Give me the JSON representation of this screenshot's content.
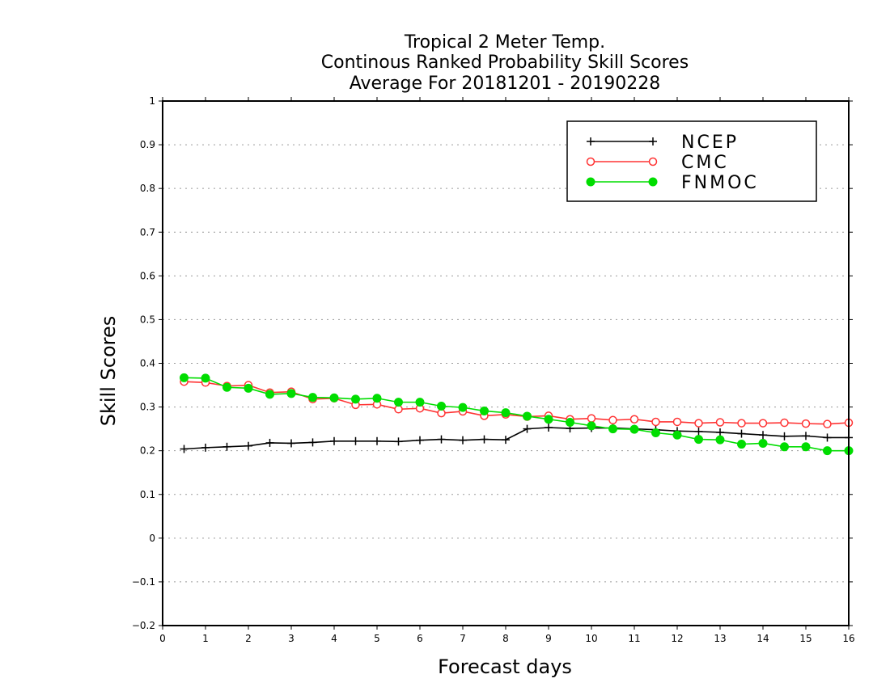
{
  "chart_data": {
    "type": "line",
    "title": [
      "Tropical 2 Meter Temp.",
      "Continous Ranked Probability Skill Scores",
      "Average For 20181201 - 20190228"
    ],
    "xlabel": "Forecast days",
    "ylabel": "Skill Scores",
    "xlim": [
      0,
      16
    ],
    "ylim": [
      -0.2,
      1
    ],
    "xticks": [
      "0",
      "1",
      "2",
      "3",
      "4",
      "5",
      "6",
      "7",
      "8",
      "9",
      "10",
      "11",
      "12",
      "13",
      "14",
      "15",
      "16"
    ],
    "yticks": [
      "1",
      "0.9",
      "0.8",
      "0.7",
      "0.6",
      "0.5",
      "0.4",
      "0.3",
      "0.2",
      "0.1",
      "0",
      "−0.1",
      "−0.2"
    ],
    "grid": "horizontal dotted",
    "legend_position": "top-right",
    "x": [
      0.5,
      1,
      1.5,
      2,
      2.5,
      3,
      3.5,
      4,
      4.5,
      5,
      5.5,
      6,
      6.5,
      7,
      7.5,
      8,
      8.5,
      9,
      9.5,
      10,
      10.5,
      11,
      11.5,
      12,
      12.5,
      13,
      13.5,
      14,
      14.5,
      15,
      15.5,
      16
    ],
    "series": [
      {
        "name": "NCEP",
        "color": "#000000",
        "marker": "plus",
        "values": [
          0.204,
          0.207,
          0.209,
          0.211,
          0.218,
          0.217,
          0.219,
          0.222,
          0.222,
          0.222,
          0.221,
          0.224,
          0.226,
          0.224,
          0.226,
          0.225,
          0.25,
          0.253,
          0.251,
          0.252,
          0.252,
          0.25,
          0.248,
          0.245,
          0.244,
          0.242,
          0.239,
          0.236,
          0.233,
          0.234,
          0.23,
          0.23
        ]
      },
      {
        "name": "CMC",
        "color": "#ff3333",
        "marker": "open-circle",
        "values": [
          0.358,
          0.356,
          0.348,
          0.35,
          0.333,
          0.335,
          0.318,
          0.32,
          0.305,
          0.306,
          0.295,
          0.297,
          0.286,
          0.29,
          0.28,
          0.283,
          0.278,
          0.28,
          0.272,
          0.274,
          0.27,
          0.272,
          0.266,
          0.266,
          0.263,
          0.265,
          0.263,
          0.263,
          0.264,
          0.262,
          0.261,
          0.264
        ]
      },
      {
        "name": "FNMOC",
        "color": "#00dd00",
        "marker": "filled-circle",
        "values": [
          0.367,
          0.366,
          0.345,
          0.343,
          0.329,
          0.331,
          0.322,
          0.321,
          0.318,
          0.32,
          0.311,
          0.311,
          0.302,
          0.299,
          0.291,
          0.287,
          0.279,
          0.272,
          0.265,
          0.257,
          0.25,
          0.249,
          0.241,
          0.236,
          0.226,
          0.225,
          0.215,
          0.217,
          0.209,
          0.209,
          0.2,
          0.2
        ]
      }
    ]
  }
}
